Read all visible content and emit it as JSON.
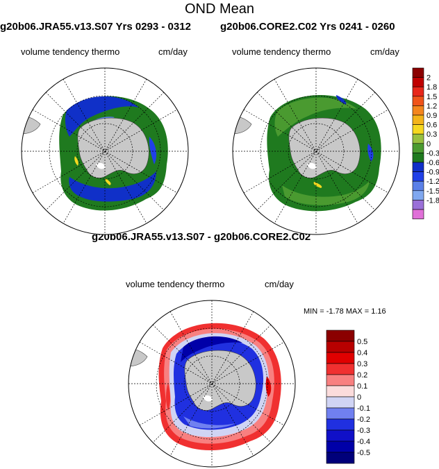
{
  "figure": {
    "title": "OND Mean"
  },
  "panels": [
    {
      "case_label": "g20b06.JRA55.v13.S07  Yrs 0293 - 0312",
      "field": "volume tendency thermo",
      "units": "cm/day"
    },
    {
      "case_label": "g20b06.CORE2.C02  Yrs 0241 - 0260",
      "field": "volume tendency thermo",
      "units": "cm/day"
    },
    {
      "case_label": "g20b06.JRA55.v13.S07 - g20b06.CORE2.C02",
      "field": "volume tendency thermo",
      "units": "cm/day",
      "stats": "MIN =  -1.78 MAX =   1.16"
    }
  ],
  "colorbar_top": {
    "labels": [
      "2",
      "1.8",
      "1.5",
      "1.2",
      "0.9",
      "0.6",
      "0.3",
      "0",
      "-0.3",
      "-0.6",
      "-0.9",
      "-1.2",
      "-1.5",
      "-1.8"
    ],
    "colors": [
      "#8b0000",
      "#c00000",
      "#e8271a",
      "#f0541a",
      "#f4861e",
      "#f4b41a",
      "#f6d820",
      "#98c040",
      "#4a9a30",
      "#1f7a1f",
      "#1030c8",
      "#2040e8",
      "#5a80e8",
      "#80a8f0",
      "#9a70d8",
      "#e070d8"
    ]
  },
  "colorbar_bottom": {
    "labels": [
      "0.5",
      "0.4",
      "0.3",
      "0.2",
      "0.1",
      "0",
      "-0.1",
      "-0.2",
      "-0.3",
      "-0.4",
      "-0.5"
    ],
    "colors": [
      "#8b0000",
      "#b80000",
      "#e00000",
      "#f03030",
      "#f88080",
      "#fbdcdc",
      "#d0d4f4",
      "#7080f0",
      "#2030e0",
      "#1010c8",
      "#0000a8",
      "#00007a"
    ]
  }
}
